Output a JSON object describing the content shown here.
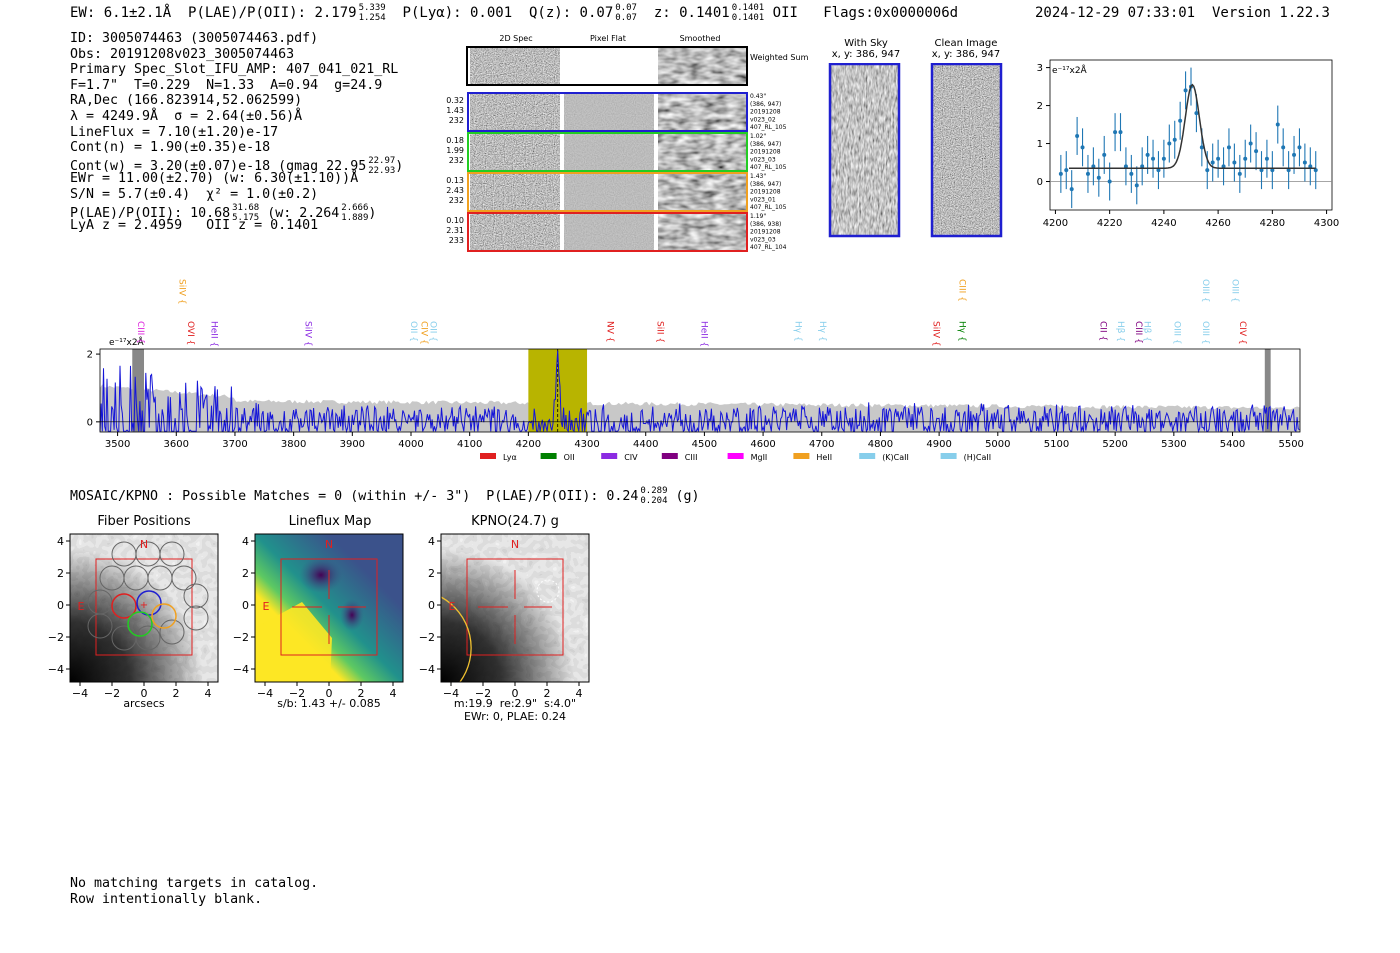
{
  "header": {
    "ew_label": "EW: 6.1±2.1Å",
    "plae_label": "P(LAE)/P(OII): 2.179",
    "plae_hi": "5.339",
    "plae_lo": "1.254",
    "plya_label": "P(Lyα): 0.001",
    "qz_label": "Q(z): 0.07",
    "qz_hi": "0.07",
    "qz_lo": "0.07",
    "z_label": "z: 0.1401",
    "z_hi": "0.1401",
    "z_lo": "0.1401",
    "z_line": "OII",
    "flags": "Flags:0x0000006d",
    "datetime": "2024-12-29 07:33:01",
    "version": "Version 1.22.3"
  },
  "info": {
    "id": "ID: 3005074463 (3005074463.pdf)",
    "obs": "Obs: 20191208v023_3005074463",
    "primary": "Primary Spec_Slot_IFU_AMP: 407_041_021_RL",
    "fiber": "F=1.7\"  T=0.229  N=1.33  A=0.94  g=24.9",
    "radec": "RA,Dec (166.823914,52.062599)",
    "lambda": "λ = 4249.9Å  σ = 2.64(±0.56)Å",
    "lineflux": "LineFlux = 7.10(±1.20)e-17",
    "contn": "Cont(n) = 1.90(±0.35)e-18",
    "contw": "Cont(w) = 3.20(±0.07)e-18 (gmag 22.95",
    "contw_hi": "22.97",
    "contw_lo": "22.93",
    "contw_end": ")",
    "ewr": "EWr = 11.00(±2.70) (w: 6.30(±1.10))Å",
    "sn": "S/N = 5.7(±0.4)  χ² = 1.0(±0.2)",
    "plae": "P(LAE)/P(OII): 10.68",
    "plae_hi": "31.68",
    "plae_lo": "5.175",
    "plae_w": "(w: 2.264",
    "plae_w_hi": "2.666",
    "plae_w_lo": "1.889",
    "plae_w_end": ")",
    "z": "LyA z = 2.4959   OII z = 0.1401"
  },
  "cutouts": {
    "col_titles": [
      "2D Spec",
      "Pixel Flat",
      "Smoothed"
    ],
    "weighted": "Weighted Sum",
    "rows": [
      {
        "left": [
          "0.32",
          "1.43",
          "232"
        ],
        "right": [
          "0.43\"",
          "(386, 947)",
          "20191208",
          "v023_02",
          "407_RL_105"
        ],
        "color": "#1f1fd0"
      },
      {
        "left": [
          "0.18",
          "1.99",
          "232"
        ],
        "right": [
          "1.02\"",
          "(386, 947)",
          "20191208",
          "v023_03",
          "407_RL_105"
        ],
        "color": "#22cc22"
      },
      {
        "left": [
          "0.13",
          "2.43",
          "232"
        ],
        "right": [
          "1.43\"",
          "(386, 947)",
          "20191208",
          "v023_01",
          "407_RL_105"
        ],
        "color": "#f0a020"
      },
      {
        "left": [
          "0.10",
          "2.31",
          "233"
        ],
        "right": [
          "1.19\"",
          "(386, 938)",
          "20191208",
          "v023_03",
          "407_RL_104"
        ],
        "color": "#e02020"
      }
    ]
  },
  "sky": {
    "with_sky": "With Sky",
    "clean": "Clean Image",
    "xy": "x, y: 386, 947"
  },
  "zoom_chart": {
    "type": "line",
    "ylabel": "e⁻¹⁷x2Å",
    "xlim": [
      4198,
      4302
    ],
    "ylim": [
      -0.75,
      3.2
    ],
    "xticks": [
      4200,
      4220,
      4240,
      4260,
      4280,
      4300
    ],
    "yticks": [
      0,
      1,
      2,
      3
    ],
    "x": [
      4202,
      4204,
      4206,
      4208,
      4210,
      4212,
      4214,
      4216,
      4218,
      4220,
      4222,
      4224,
      4226,
      4228,
      4230,
      4232,
      4234,
      4236,
      4238,
      4240,
      4242,
      4244,
      4246,
      4248,
      4250,
      4252,
      4254,
      4256,
      4258,
      4260,
      4262,
      4264,
      4266,
      4268,
      4270,
      4272,
      4274,
      4276,
      4278,
      4280,
      4282,
      4284,
      4286,
      4288,
      4290,
      4292,
      4294,
      4296
    ],
    "y": [
      0.2,
      0.3,
      -0.2,
      1.2,
      0.9,
      0.2,
      0.4,
      0.1,
      0.7,
      0.0,
      1.3,
      1.3,
      0.4,
      0.2,
      -0.1,
      0.4,
      0.7,
      0.6,
      0.3,
      0.6,
      1.0,
      1.1,
      1.6,
      2.4,
      2.5,
      1.8,
      0.9,
      0.3,
      0.5,
      0.6,
      0.4,
      0.9,
      0.5,
      0.2,
      0.6,
      1.0,
      0.8,
      0.3,
      0.6,
      0.3,
      1.5,
      0.9,
      0.3,
      0.7,
      0.9,
      0.5,
      0.4,
      0.3
    ],
    "err": [
      0.5,
      0.5,
      0.5,
      0.5,
      0.5,
      0.5,
      0.5,
      0.5,
      0.5,
      0.5,
      0.5,
      0.5,
      0.5,
      0.5,
      0.5,
      0.5,
      0.5,
      0.5,
      0.5,
      0.5,
      0.5,
      0.5,
      0.5,
      0.5,
      0.5,
      0.5,
      0.5,
      0.5,
      0.5,
      0.5,
      0.5,
      0.5,
      0.5,
      0.5,
      0.5,
      0.5,
      0.5,
      0.5,
      0.5,
      0.5,
      0.5,
      0.5,
      0.5,
      0.5,
      0.5,
      0.5,
      0.5,
      0.5
    ],
    "fit": {
      "continuum": 0.35,
      "amplitude": 2.2,
      "center": 4250.5,
      "sigma": 2.6,
      "xmin": 4205,
      "xmax": 4296
    }
  },
  "spectrum": {
    "type": "line",
    "ylabel": "e⁻¹⁷x2Å",
    "xlim": [
      3470,
      5515
    ],
    "ylim": [
      -0.3,
      2.15
    ],
    "xticks": [
      3500,
      3600,
      3700,
      3800,
      3900,
      4000,
      4100,
      4200,
      4300,
      4400,
      4500,
      4600,
      4700,
      4800,
      4900,
      5000,
      5100,
      5200,
      5300,
      5400,
      5500
    ],
    "yticks": [
      0,
      2
    ],
    "highlight": [
      4200,
      4300
    ],
    "line_center": 4250,
    "masked": [
      [
        3525,
        3545
      ],
      [
        5455,
        5465
      ]
    ],
    "emission_labels": [
      {
        "name": "CIII",
        "wave": 3530,
        "color": "#dd22dd",
        "tall": false
      },
      {
        "name": "SiIV",
        "wave": 3600,
        "color": "#f0a020",
        "tall": true
      },
      {
        "name": "OVI",
        "wave": 3615,
        "color": "#e02020",
        "tall": false
      },
      {
        "name": "HeII",
        "wave": 3655,
        "color": "#8b2be2",
        "tall": false
      },
      {
        "name": "SiIV",
        "wave": 3815,
        "color": "#8b2be2",
        "tall": false
      },
      {
        "name": "OII",
        "wave": 3995,
        "color": "#87ceeb",
        "tall": false
      },
      {
        "name": "CIV",
        "wave": 4013,
        "color": "#f0a020",
        "tall": false
      },
      {
        "name": "OII",
        "wave": 4028,
        "color": "#87ceeb",
        "tall": false
      },
      {
        "name": "NV",
        "wave": 4330,
        "color": "#e02020",
        "tall": false
      },
      {
        "name": "SiII",
        "wave": 4415,
        "color": "#e02020",
        "tall": false
      },
      {
        "name": "HeII",
        "wave": 4490,
        "color": "#8b2be2",
        "tall": false
      },
      {
        "name": "Hγ",
        "wave": 4650,
        "color": "#87ceeb",
        "tall": false
      },
      {
        "name": "Hγ",
        "wave": 4692,
        "color": "#87ceeb",
        "tall": false
      },
      {
        "name": "SiIV",
        "wave": 4885,
        "color": "#e02020",
        "tall": false
      },
      {
        "name": "CIII",
        "wave": 4930,
        "color": "#f0a020",
        "tall": true
      },
      {
        "name": "Hγ",
        "wave": 4930,
        "color": "#008000",
        "tall": false
      },
      {
        "name": "CII",
        "wave": 5170,
        "color": "#800080",
        "tall": false
      },
      {
        "name": "Hβ",
        "wave": 5200,
        "color": "#87ceeb",
        "tall": false
      },
      {
        "name": "CIII",
        "wave": 5230,
        "color": "#800080",
        "tall": false
      },
      {
        "name": "Hβ",
        "wave": 5245,
        "color": "#87ceeb",
        "tall": false
      },
      {
        "name": "OIII",
        "wave": 5296,
        "color": "#87ceeb",
        "tall": false
      },
      {
        "name": "OIII",
        "wave": 5345,
        "color": "#87ceeb",
        "tall": false
      },
      {
        "name": "OIII",
        "wave": 5345,
        "color": "#87ceeb",
        "tall": true
      },
      {
        "name": "OIII",
        "wave": 5395,
        "color": "#87ceeb",
        "tall": true
      },
      {
        "name": "CIV",
        "wave": 5408,
        "color": "#e02020",
        "tall": false
      }
    ],
    "legend": [
      {
        "name": "Lyα",
        "color": "#e02020"
      },
      {
        "name": "OII",
        "color": "#008000"
      },
      {
        "name": "CIV",
        "color": "#8b2be2"
      },
      {
        "name": "CIII",
        "color": "#800080"
      },
      {
        "name": "MgII",
        "color": "#ff00ff"
      },
      {
        "name": "HeII",
        "color": "#f0a020"
      },
      {
        "name": "(K)CaII",
        "color": "#87ceeb"
      },
      {
        "name": "(H)CaII",
        "color": "#87ceeb"
      }
    ]
  },
  "mosaic": {
    "line": "MOSAIC/KPNO : Possible Matches = 0 (within +/- 3\")  P(LAE)/P(OII): 0.24",
    "hi": "0.289",
    "lo": "0.204",
    "end": "(g)"
  },
  "panels": {
    "fiber_title": "Fiber Positions",
    "fiber_xlabel": "arcsecs",
    "flux_title": "Lineflux Map",
    "flux_xlabel": "s/b: 1.43 +/- 0.085",
    "kpno_title": "KPNO(24.7) g",
    "kpno_xlabel1": "m:19.9  re:2.9\"  s:4.0\"",
    "kpno_xlabel2": "EWr: 0, PLAE: 0.24",
    "ticks": [
      "-4",
      "-2",
      "0",
      "2",
      "4"
    ],
    "north": "N",
    "east": "E"
  },
  "footer": {
    "line1": "No matching targets in catalog.",
    "line2": "Row intentionally blank."
  }
}
